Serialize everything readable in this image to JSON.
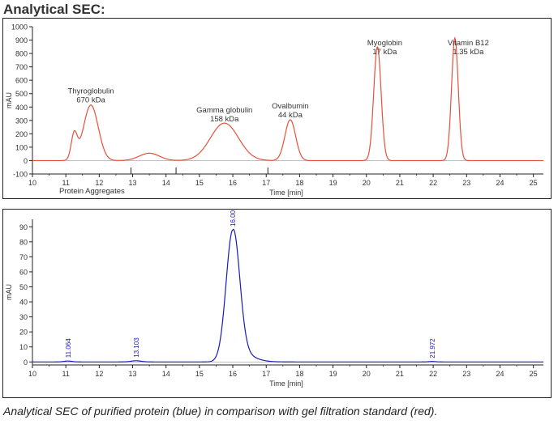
{
  "title": "Analytical SEC:",
  "caption": "Analytical SEC of purified protein (blue) in comparison with gel filtration standard (red).",
  "colors": {
    "standard": "#e8503a",
    "sample": "#1a1ab8",
    "axis": "#222222",
    "tick_text": "#333333"
  },
  "chart_data": [
    {
      "type": "line",
      "xlabel": "Time [min]",
      "ylabel": "mAU",
      "xlim": [
        10,
        25.3
      ],
      "ylim": [
        -100,
        1000
      ],
      "x_ticks": [
        10,
        11,
        12,
        13,
        14,
        15,
        16,
        17,
        18,
        19,
        20,
        21,
        22,
        23,
        24,
        25
      ],
      "y_ticks": [
        -100,
        0,
        100,
        200,
        300,
        400,
        500,
        600,
        700,
        800,
        900,
        1000
      ],
      "fraction_markers": [
        12.95,
        14.3,
        17.05
      ],
      "series": [
        {
          "color": "#e8503a",
          "baseline": 0,
          "peaks": [
            {
              "x": 11.25,
              "height": 190,
              "width": 0.09
            },
            {
              "x": 11.75,
              "height": 415,
              "width": 0.22
            },
            {
              "x": 13.5,
              "height": 55,
              "width": 0.3
            },
            {
              "x": 15.75,
              "height": 280,
              "width": 0.42
            },
            {
              "x": 17.72,
              "height": 305,
              "width": 0.16
            },
            {
              "x": 20.33,
              "height": 850,
              "width": 0.11
            },
            {
              "x": 22.65,
              "height": 915,
              "width": 0.1
            }
          ]
        }
      ],
      "annotations": [
        {
          "lines": [
            "Thyroglobulin",
            "670 kDa"
          ],
          "x": 11.75,
          "y": 500
        },
        {
          "lines": [
            "Gamma globulin",
            "158 kDa"
          ],
          "x": 15.75,
          "y": 360
        },
        {
          "lines": [
            "Ovalbumin",
            "44 kDa"
          ],
          "x": 17.72,
          "y": 390
        },
        {
          "lines": [
            "Myoglobin",
            "17 kDa"
          ],
          "x": 20.55,
          "y": 860
        },
        {
          "lines": [
            "Vitamin B12",
            "1.35 kDa"
          ],
          "x": 23.05,
          "y": 860
        },
        {
          "lines": [
            "Protein Aggregates"
          ],
          "x": 10.8,
          "y": -220
        }
      ]
    },
    {
      "type": "line",
      "xlabel": "Time [min]",
      "ylabel": "mAU",
      "xlim": [
        10,
        25.3
      ],
      "ylim": [
        -2,
        95
      ],
      "x_ticks": [
        10,
        11,
        12,
        13,
        14,
        15,
        16,
        17,
        18,
        19,
        20,
        21,
        22,
        23,
        24,
        25
      ],
      "y_ticks": [
        0,
        10,
        20,
        30,
        40,
        50,
        60,
        70,
        80,
        90
      ],
      "series": [
        {
          "color": "#1a1ab8",
          "baseline": 0,
          "peaks": [
            {
              "x": 11.064,
              "height": 0.6,
              "width": 0.12
            },
            {
              "x": 13.103,
              "height": 0.8,
              "width": 0.15
            },
            {
              "x": 16.001,
              "height": 88,
              "width": 0.2,
              "tail": 9,
              "tail_width": 0.45
            },
            {
              "x": 21.972,
              "height": 0.3,
              "width": 0.1
            }
          ]
        }
      ],
      "peak_labels": [
        {
          "x": 11.064,
          "label": "11.064"
        },
        {
          "x": 13.103,
          "label": "13.103"
        },
        {
          "x": 16.001,
          "label": "16.001"
        },
        {
          "x": 21.972,
          "label": "21.972"
        }
      ]
    }
  ]
}
